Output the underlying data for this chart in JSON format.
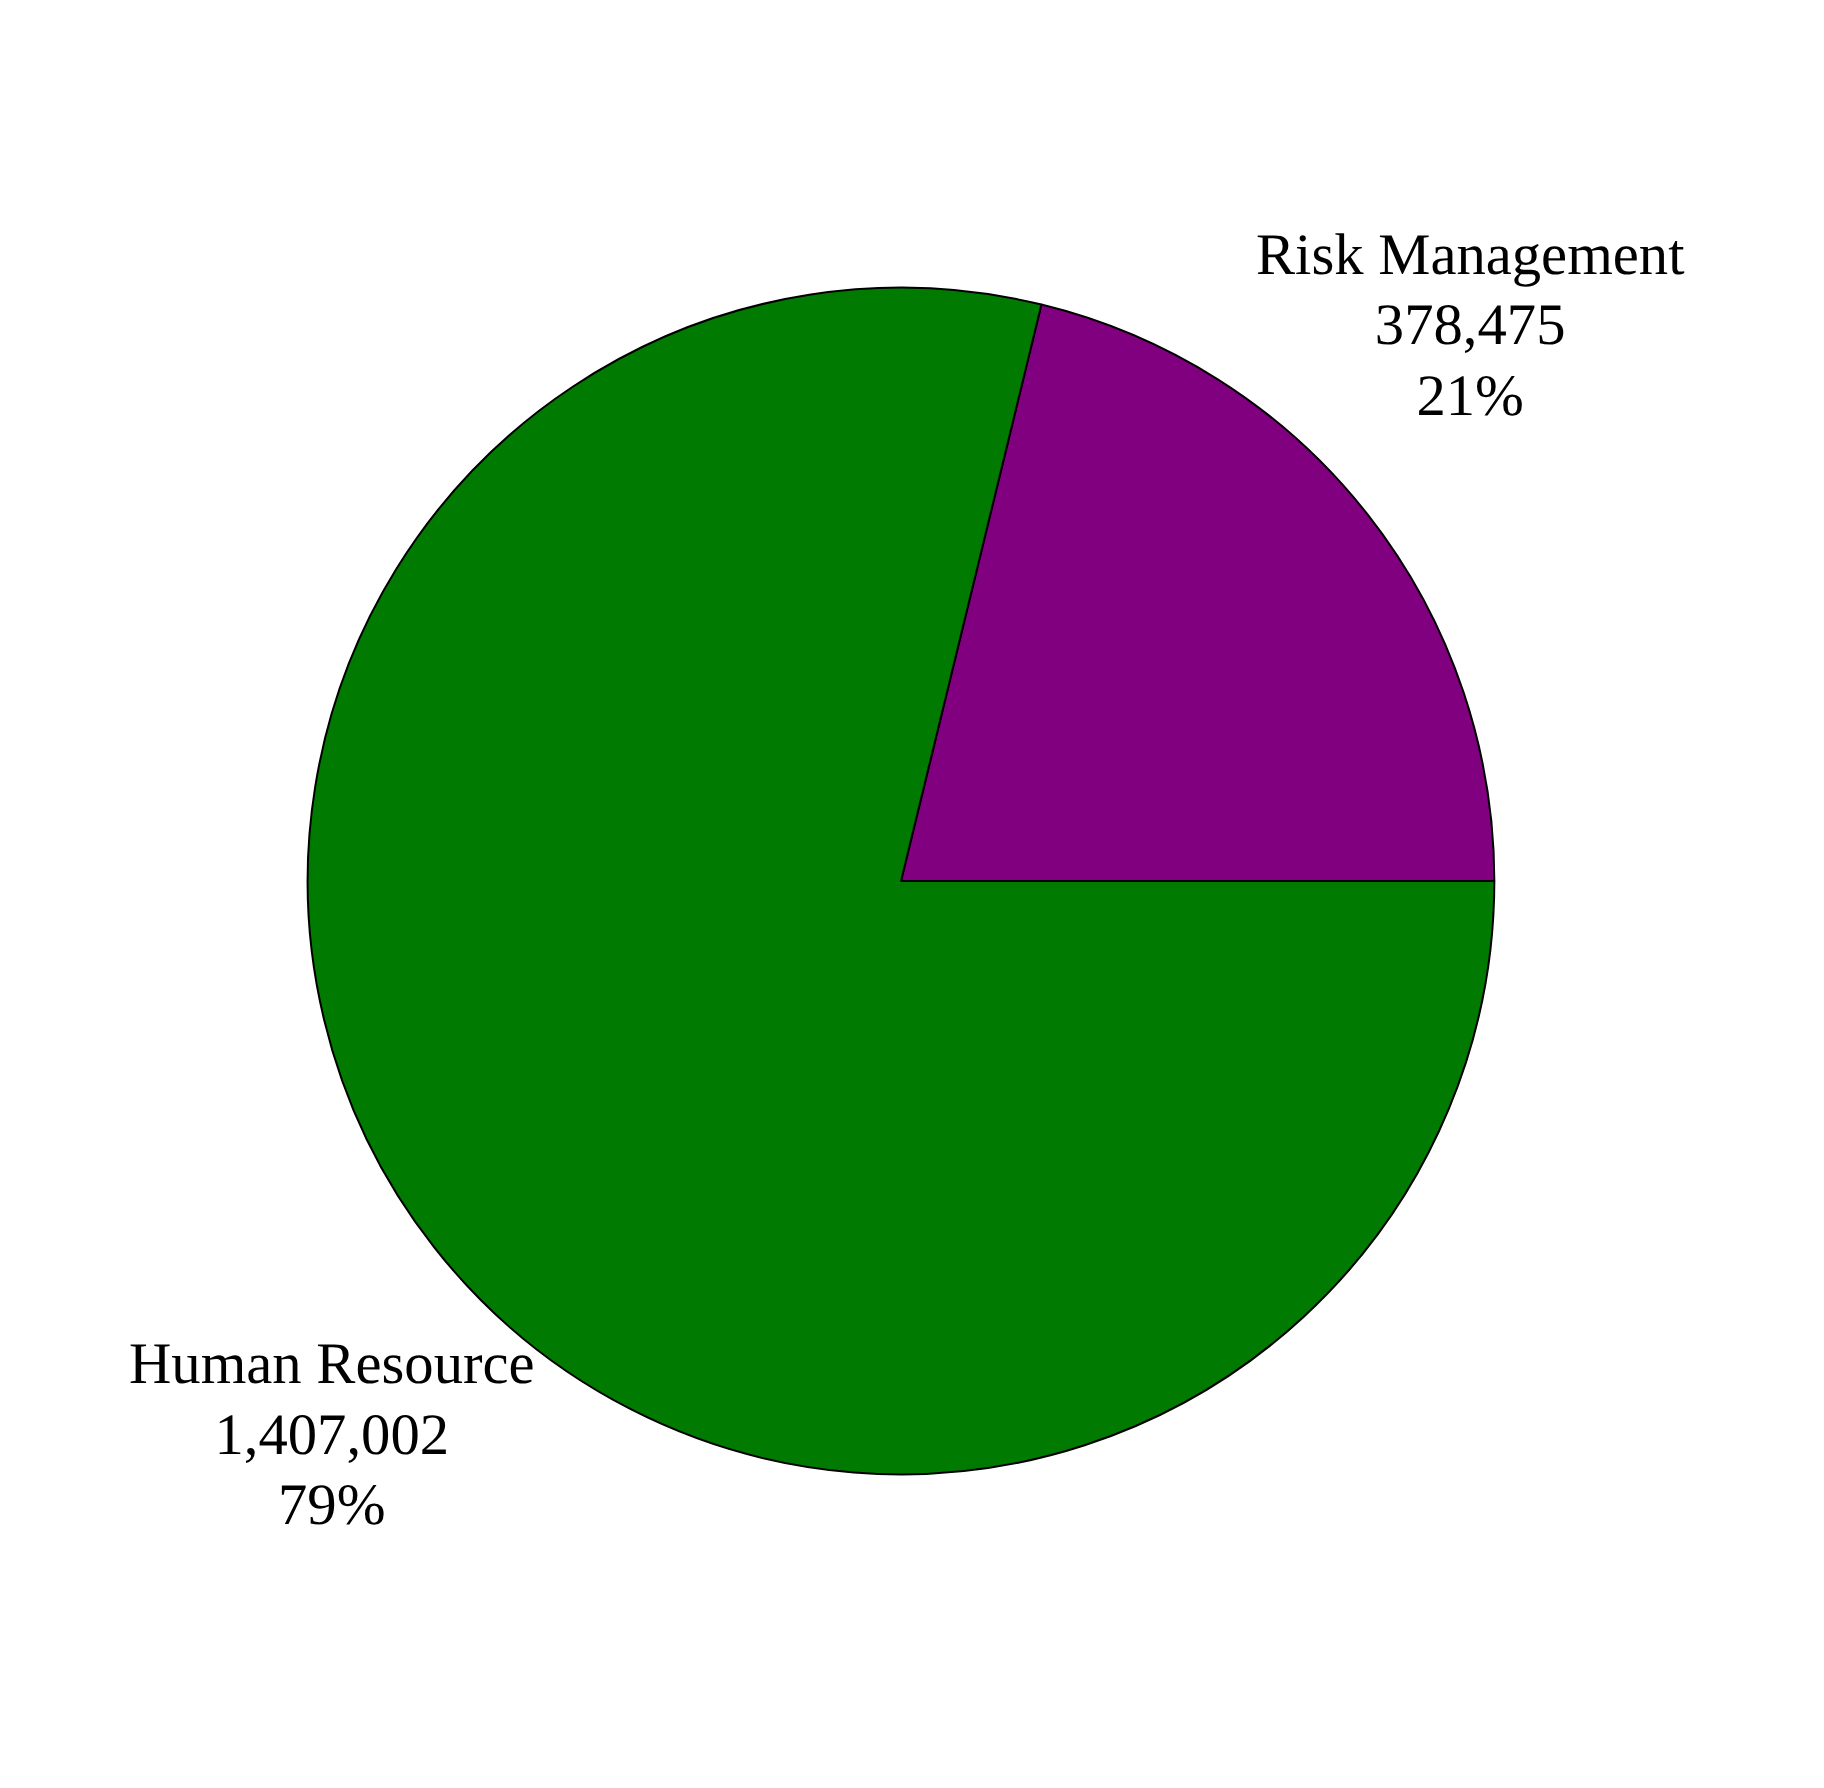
{
  "chart_data": {
    "type": "pie",
    "categories": [
      "Risk Management",
      "Human Resource"
    ],
    "values": [
      378475,
      1407002
    ],
    "colors": [
      "#800080",
      "#007a00"
    ],
    "value_labels": [
      "378,475\n21%",
      "1,407,002\n79%"
    ]
  }
}
